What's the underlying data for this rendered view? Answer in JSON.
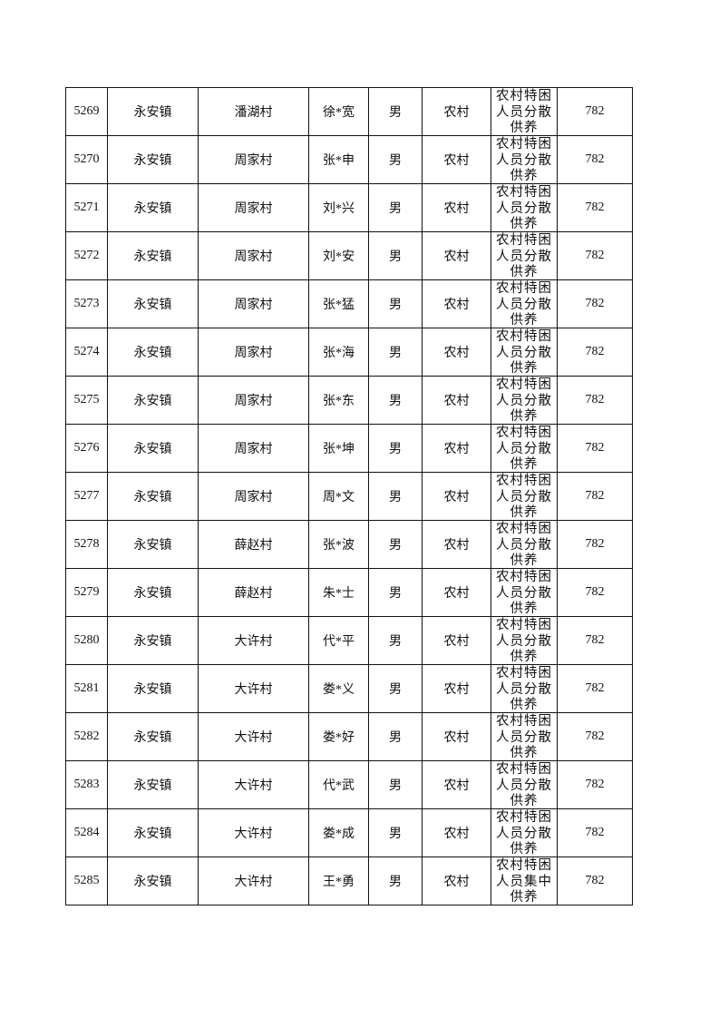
{
  "rows": [
    {
      "no": "5269",
      "town": "永安镇",
      "village": "潘湖村",
      "name": "徐*宽",
      "gender": "男",
      "area": "农村",
      "type": "农村特困人员分散供养",
      "amount": "782"
    },
    {
      "no": "5270",
      "town": "永安镇",
      "village": "周家村",
      "name": "张*申",
      "gender": "男",
      "area": "农村",
      "type": "农村特困人员分散供养",
      "amount": "782"
    },
    {
      "no": "5271",
      "town": "永安镇",
      "village": "周家村",
      "name": "刘*兴",
      "gender": "男",
      "area": "农村",
      "type": "农村特困人员分散供养",
      "amount": "782"
    },
    {
      "no": "5272",
      "town": "永安镇",
      "village": "周家村",
      "name": "刘*安",
      "gender": "男",
      "area": "农村",
      "type": "农村特困人员分散供养",
      "amount": "782"
    },
    {
      "no": "5273",
      "town": "永安镇",
      "village": "周家村",
      "name": "张*猛",
      "gender": "男",
      "area": "农村",
      "type": "农村特困人员分散供养",
      "amount": "782"
    },
    {
      "no": "5274",
      "town": "永安镇",
      "village": "周家村",
      "name": "张*海",
      "gender": "男",
      "area": "农村",
      "type": "农村特困人员分散供养",
      "amount": "782"
    },
    {
      "no": "5275",
      "town": "永安镇",
      "village": "周家村",
      "name": "张*东",
      "gender": "男",
      "area": "农村",
      "type": "农村特困人员分散供养",
      "amount": "782"
    },
    {
      "no": "5276",
      "town": "永安镇",
      "village": "周家村",
      "name": "张*坤",
      "gender": "男",
      "area": "农村",
      "type": "农村特困人员分散供养",
      "amount": "782"
    },
    {
      "no": "5277",
      "town": "永安镇",
      "village": "周家村",
      "name": "周*文",
      "gender": "男",
      "area": "农村",
      "type": "农村特困人员分散供养",
      "amount": "782"
    },
    {
      "no": "5278",
      "town": "永安镇",
      "village": "薛赵村",
      "name": "张*波",
      "gender": "男",
      "area": "农村",
      "type": "农村特困人员分散供养",
      "amount": "782"
    },
    {
      "no": "5279",
      "town": "永安镇",
      "village": "薛赵村",
      "name": "朱*士",
      "gender": "男",
      "area": "农村",
      "type": "农村特困人员分散供养",
      "amount": "782"
    },
    {
      "no": "5280",
      "town": "永安镇",
      "village": "大许村",
      "name": "代*平",
      "gender": "男",
      "area": "农村",
      "type": "农村特困人员分散供养",
      "amount": "782"
    },
    {
      "no": "5281",
      "town": "永安镇",
      "village": "大许村",
      "name": "娄*义",
      "gender": "男",
      "area": "农村",
      "type": "农村特困人员分散供养",
      "amount": "782"
    },
    {
      "no": "5282",
      "town": "永安镇",
      "village": "大许村",
      "name": "娄*好",
      "gender": "男",
      "area": "农村",
      "type": "农村特困人员分散供养",
      "amount": "782"
    },
    {
      "no": "5283",
      "town": "永安镇",
      "village": "大许村",
      "name": "代*武",
      "gender": "男",
      "area": "农村",
      "type": "农村特困人员分散供养",
      "amount": "782"
    },
    {
      "no": "5284",
      "town": "永安镇",
      "village": "大许村",
      "name": "娄*成",
      "gender": "男",
      "area": "农村",
      "type": "农村特困人员分散供养",
      "amount": "782"
    },
    {
      "no": "5285",
      "town": "永安镇",
      "village": "大许村",
      "name": "王*勇",
      "gender": "男",
      "area": "农村",
      "type": "农村特困人员集中供养",
      "amount": "782"
    }
  ]
}
